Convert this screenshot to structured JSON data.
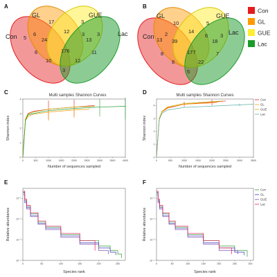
{
  "panels": [
    "A",
    "B",
    "C",
    "D",
    "E",
    "F"
  ],
  "colors": {
    "Con": "#e41a1c",
    "GL": "#ff9900",
    "GUE": "#ffee33",
    "Lac": "#1a9a2a"
  },
  "legend": [
    {
      "name": "Con",
      "color": "#e41a1c"
    },
    {
      "name": "GL",
      "color": "#ff9900"
    },
    {
      "name": "GUE",
      "color": "#ffee33"
    },
    {
      "name": "Lac",
      "color": "#1a9a2a"
    }
  ],
  "venn_A": {
    "labels": {
      "Con": "Con",
      "GL": "GL",
      "GUE": "GUE",
      "Lac": "Lac"
    },
    "regions": {
      "gl_only": "17",
      "gue_only": "3",
      "gl_gue": "12",
      "con_only": "5",
      "lac_only": "3",
      "con_gl": "6",
      "gl_gue_con": "24",
      "gue_lac": "13",
      "gue_lac_gl": "3",
      "all": "176",
      "con_gue": "6",
      "con_lac_gl": "10",
      "lac_gl_gue": "12",
      "lac_con": "3",
      "con_lac": "11"
    }
  },
  "venn_B": {
    "labels": {
      "Con": "Con",
      "GL": "GL",
      "GUE": "GUE",
      "Lac": "Lac"
    },
    "regions": {
      "gl_only": "10",
      "gue_only": "5",
      "gl_gue": "14",
      "con_only": "13",
      "lac_only": "3",
      "con_gl": "2",
      "gl_gue_con": "39",
      "gue_lac": "18",
      "gue_lac_gl": "6",
      "all": "177",
      "con_gue": "8",
      "con_lac_gl": "8",
      "lac_gl_gue": "22",
      "lac_con": "5",
      "con_lac": "7"
    }
  },
  "chart_data": [
    {
      "panel": "C",
      "type": "line",
      "title": "Multi samples Shannon Curves",
      "xlabel": "Number of sequences sampled",
      "ylabel": "Shannon index",
      "xlim": [
        0,
        4000
      ],
      "ylim": [
        0,
        4
      ],
      "xticks": [
        "0",
        "500",
        "1000",
        "1500",
        "2000",
        "2500",
        "3000",
        "3500",
        "4000"
      ],
      "yticks": [
        "0",
        "1",
        "2",
        "3",
        "4"
      ],
      "series": [
        {
          "name": "Con",
          "color": "#e41a1c",
          "x": [
            0,
            100,
            200,
            400,
            1000,
            2000,
            2800
          ],
          "y": [
            0,
            2.6,
            3.0,
            3.15,
            3.3,
            3.45,
            3.55
          ],
          "errors": [
            {
              "x": 1000,
              "low": 2.6,
              "high": 3.9
            },
            {
              "x": 2000,
              "low": 2.8,
              "high": 3.95
            }
          ]
        },
        {
          "name": "GL",
          "color": "#ff9900",
          "x": [
            0,
            100,
            200,
            400,
            1000,
            2000,
            2600
          ],
          "y": [
            0,
            2.5,
            2.8,
            2.95,
            3.1,
            3.25,
            3.3
          ],
          "errors": [
            {
              "x": 1000,
              "low": 2.5,
              "high": 3.4
            },
            {
              "x": 2000,
              "low": 2.7,
              "high": 3.6
            }
          ]
        },
        {
          "name": "GUE",
          "color": "#bbb000",
          "x": [
            0,
            100,
            200,
            400,
            1000,
            2000,
            2800
          ],
          "y": [
            0,
            2.6,
            2.95,
            3.1,
            3.3,
            3.45,
            3.5
          ],
          "errors": []
        },
        {
          "name": "Lac",
          "color": "#1a9a2a",
          "x": [
            0,
            100,
            200,
            400,
            1000,
            2000,
            3000,
            4000
          ],
          "y": [
            0,
            2.5,
            2.9,
            3.0,
            3.2,
            3.35,
            3.45,
            3.5
          ],
          "errors": [
            {
              "x": 3000,
              "low": 2.8,
              "high": 4.0
            },
            {
              "x": 4000,
              "low": 2.6,
              "high": 4.1
            }
          ]
        }
      ],
      "legend": [
        "Con",
        "GL",
        "GUE",
        "Lac"
      ],
      "legend_position": "none"
    },
    {
      "panel": "D",
      "type": "line",
      "title": "Multi samples Shannon Curves",
      "xlabel": "Number of sequences sampled",
      "ylabel": "Shannon index",
      "xlim": [
        0,
        3500
      ],
      "ylim": [
        0,
        4.5
      ],
      "xticks": [
        "0",
        "500",
        "1000",
        "1500",
        "2000",
        "2500",
        "3000",
        "3500"
      ],
      "yticks": [
        "0",
        "1",
        "2",
        "3",
        "4"
      ],
      "series": [
        {
          "name": "Con",
          "color": "#e41a1c",
          "x": [
            0,
            100,
            200,
            400,
            1000,
            2000,
            2500
          ],
          "y": [
            0,
            3.0,
            3.5,
            3.8,
            4.1,
            4.25,
            4.35
          ],
          "errors": [
            {
              "x": 1000,
              "low": 3.9,
              "high": 4.3
            },
            {
              "x": 2000,
              "low": 4.0,
              "high": 4.45
            }
          ]
        },
        {
          "name": "GL",
          "color": "#ff9900",
          "x": [
            0,
            100,
            200,
            400,
            1000,
            2000,
            2200
          ],
          "y": [
            0,
            3.0,
            3.5,
            3.85,
            4.1,
            4.2,
            4.25
          ],
          "errors": []
        },
        {
          "name": "GUE",
          "color": "#bbb000",
          "x": [
            0,
            100,
            200,
            400,
            1000,
            2000,
            2400
          ],
          "y": [
            0,
            3.0,
            3.55,
            3.9,
            4.15,
            4.3,
            4.35
          ],
          "errors": []
        },
        {
          "name": "Lac",
          "color": "#5ab0a8",
          "x": [
            0,
            100,
            200,
            400,
            1000,
            2000,
            3000,
            3500
          ],
          "y": [
            0,
            2.9,
            3.4,
            3.65,
            3.85,
            3.95,
            4.05,
            4.1
          ],
          "errors": [
            {
              "x": 3000,
              "low": 3.95,
              "high": 4.15
            }
          ]
        }
      ],
      "legend": [
        "Con",
        "GL",
        "GUE",
        "Lac"
      ],
      "legend_position": "right"
    },
    {
      "panel": "E",
      "type": "line",
      "title": "",
      "xlabel": "Species rank",
      "ylabel": "Relative abundance",
      "xlim": [
        0,
        270
      ],
      "yscale": "log",
      "ylim": [
        0.0001,
        0.3
      ],
      "xticks": [
        "0",
        "50",
        "100",
        "150",
        "200",
        "250"
      ],
      "yticks": [
        "10⁻¹",
        "10⁻²",
        "10⁻³",
        "10⁻⁴"
      ],
      "series": [
        {
          "name": "Con",
          "color": "#2aa02a",
          "x": [
            1,
            5,
            10,
            20,
            40,
            60,
            100,
            150,
            200,
            230,
            250,
            260
          ],
          "y": [
            0.2,
            0.08,
            0.04,
            0.018,
            0.007,
            0.004,
            0.0018,
            0.0009,
            0.0005,
            0.0003,
            0.0002,
            0.00013
          ]
        },
        {
          "name": "GL",
          "color": "#3a3ab8",
          "x": [
            1,
            5,
            10,
            20,
            40,
            60,
            100,
            150,
            200,
            230,
            245
          ],
          "y": [
            0.18,
            0.07,
            0.035,
            0.015,
            0.006,
            0.0035,
            0.0015,
            0.0007,
            0.0004,
            0.00025,
            0.00018
          ]
        },
        {
          "name": "GUE",
          "color": "#7a4ab0",
          "x": [
            1,
            5,
            10,
            20,
            40,
            60,
            100,
            150,
            200,
            225
          ],
          "y": [
            0.15,
            0.06,
            0.03,
            0.013,
            0.0055,
            0.003,
            0.0013,
            0.0006,
            0.0003,
            0.0002
          ]
        },
        {
          "name": "Lac",
          "color": "#e41a5a",
          "x": [
            1,
            5,
            10,
            20,
            40,
            60,
            100,
            150,
            190
          ],
          "y": [
            0.22,
            0.09,
            0.045,
            0.02,
            0.008,
            0.0045,
            0.002,
            0.0009,
            0.0003
          ]
        }
      ],
      "legend": [
        "Con",
        "GL",
        "GUE",
        "Lac"
      ],
      "legend_position": "none"
    },
    {
      "panel": "F",
      "type": "line",
      "title": "",
      "xlabel": "Species rank",
      "ylabel": "Relative abundance",
      "xlim": [
        0,
        310
      ],
      "yscale": "log",
      "ylim": [
        0.0001,
        0.3
      ],
      "xticks": [
        "0",
        "50",
        "100",
        "150",
        "200",
        "250",
        "300"
      ],
      "yticks": [
        "10⁻¹",
        "10⁻²",
        "10⁻³",
        "10⁻⁴"
      ],
      "series": [
        {
          "name": "Con",
          "color": "#2aa02a",
          "x": [
            1,
            5,
            10,
            20,
            40,
            60,
            100,
            150,
            200,
            250,
            290
          ],
          "y": [
            0.2,
            0.08,
            0.04,
            0.018,
            0.007,
            0.004,
            0.0018,
            0.0009,
            0.0005,
            0.0003,
            0.00015
          ]
        },
        {
          "name": "GL",
          "color": "#3a3ab8",
          "x": [
            1,
            5,
            10,
            20,
            40,
            60,
            100,
            150,
            200,
            250,
            280
          ],
          "y": [
            0.18,
            0.07,
            0.035,
            0.015,
            0.006,
            0.0035,
            0.0015,
            0.0007,
            0.0004,
            0.00025,
            0.00018
          ]
        },
        {
          "name": "GUE",
          "color": "#7a4ab0",
          "x": [
            1,
            5,
            10,
            20,
            40,
            60,
            100,
            150,
            200,
            260
          ],
          "y": [
            0.15,
            0.06,
            0.03,
            0.013,
            0.0055,
            0.003,
            0.0013,
            0.0006,
            0.0003,
            0.0002
          ]
        },
        {
          "name": "Lac",
          "color": "#e41a5a",
          "x": [
            1,
            5,
            10,
            20,
            40,
            60,
            100,
            150,
            200,
            240
          ],
          "y": [
            0.22,
            0.09,
            0.045,
            0.02,
            0.008,
            0.0045,
            0.002,
            0.0009,
            0.0004,
            0.0002
          ]
        }
      ],
      "legend": [
        "Con",
        "GL",
        "GUE",
        "Lac"
      ],
      "legend_position": "right"
    }
  ]
}
